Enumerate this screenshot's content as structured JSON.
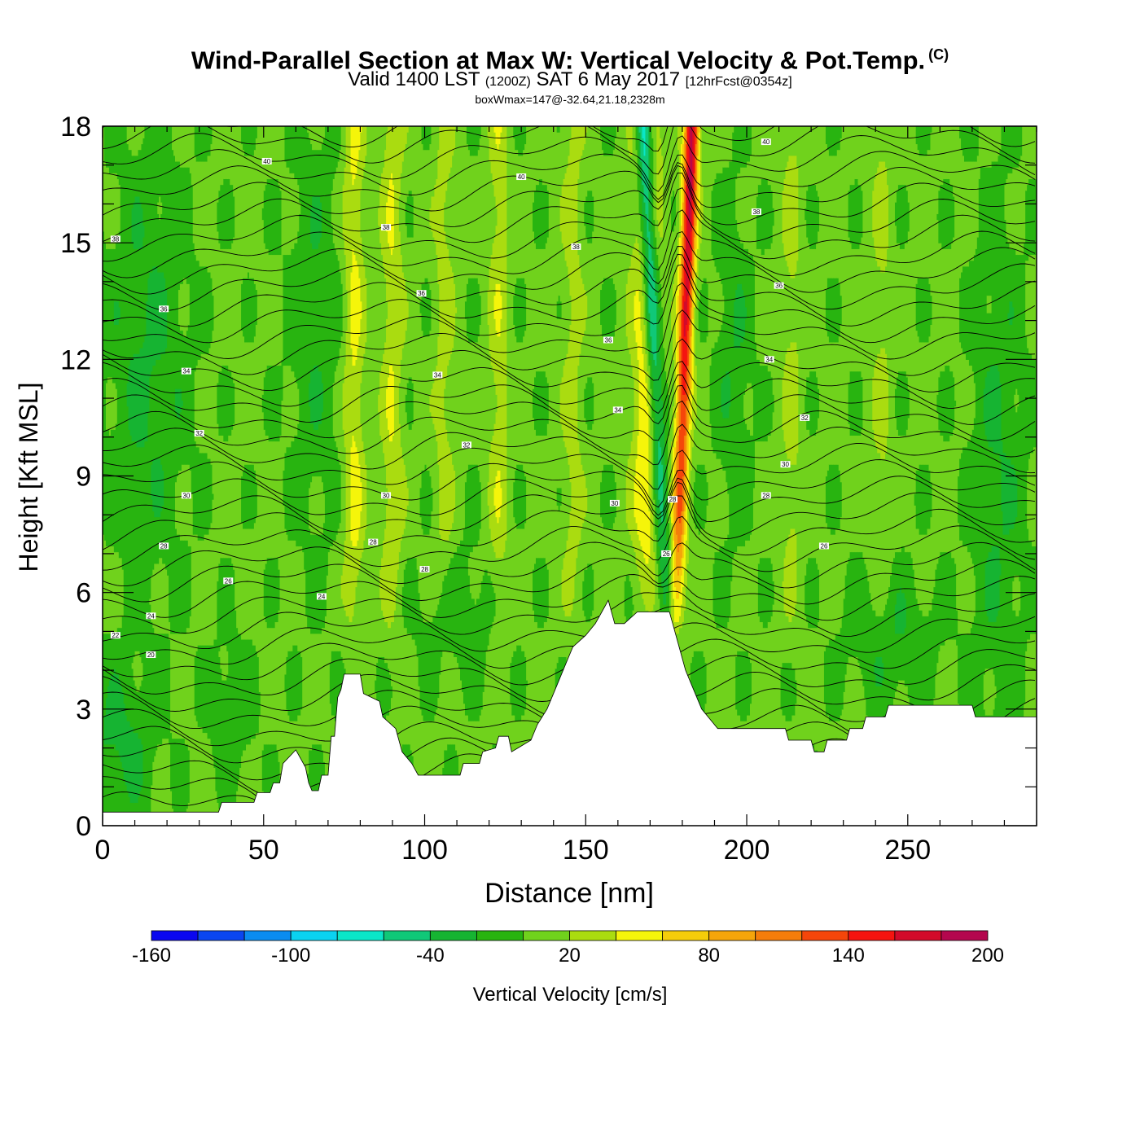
{
  "title": {
    "main": "Wind-Parallel Section at Max W: Vertical Velocity & Pot.Temp.",
    "copyright": "(C)",
    "valid_prefix": "Valid 1400 LST",
    "valid_utc": "(1200Z)",
    "valid_date": "SAT 6 May 2017",
    "forecast": "[12hrFcst@0354z]",
    "box_wmax": "boxWmax=147@-32.64,21.18,2328m"
  },
  "colors": {
    "bins": [
      "#0a06f0",
      "#0a46f0",
      "#0a8cf0",
      "#0ad2f0",
      "#0ae6c8",
      "#10c878",
      "#16b432",
      "#28b410",
      "#70d21c",
      "#aadc10",
      "#f5f50a",
      "#f5cd0a",
      "#f5a50a",
      "#f57d0a",
      "#f5460a",
      "#f51410",
      "#d20a2a",
      "#b4064e"
    ],
    "terrain": "#ffffff"
  },
  "chart_data": {
    "type": "heatmap",
    "xlabel": "Distance [nm]",
    "ylabel": "Height [Kft MSL]",
    "xlim": [
      0,
      290
    ],
    "ylim": [
      0,
      18
    ],
    "xticks": [
      "0",
      "50",
      "100",
      "150",
      "200",
      "250"
    ],
    "xtick_values": [
      0,
      50,
      100,
      150,
      200,
      250
    ],
    "yticks": [
      "0",
      "3",
      "6",
      "9",
      "12",
      "15",
      "18"
    ],
    "ytick_values": [
      0,
      3,
      6,
      9,
      12,
      15,
      18
    ],
    "colorbar": {
      "label": "Vertical Velocity [cm/s]",
      "bounds": [
        -160,
        -140,
        -120,
        -100,
        -80,
        -60,
        -40,
        -20,
        0,
        20,
        40,
        60,
        80,
        100,
        120,
        140,
        160,
        180,
        200
      ],
      "tick_labels": [
        "-160",
        "-100",
        "-40",
        "20",
        "80",
        "140",
        "200"
      ],
      "tick_values": [
        -160,
        -100,
        -40,
        20,
        80,
        140,
        200
      ]
    },
    "terrain_kft": [
      [
        0,
        0.35
      ],
      [
        36,
        0.35
      ],
      [
        37,
        0.6
      ],
      [
        47,
        0.6
      ],
      [
        48,
        0.85
      ],
      [
        52,
        0.85
      ],
      [
        53,
        1.1
      ],
      [
        55,
        1.1
      ],
      [
        56,
        1.6
      ],
      [
        60,
        1.95
      ],
      [
        63,
        1.5
      ],
      [
        64,
        1.1
      ],
      [
        65,
        0.9
      ],
      [
        67,
        0.9
      ],
      [
        68,
        1.3
      ],
      [
        70,
        1.3
      ],
      [
        71,
        2.3
      ],
      [
        72,
        2.3
      ],
      [
        73,
        3.3
      ],
      [
        74,
        3.5
      ],
      [
        75,
        3.9
      ],
      [
        80,
        3.9
      ],
      [
        81,
        3.4
      ],
      [
        86,
        3.2
      ],
      [
        87,
        2.8
      ],
      [
        91,
        2.5
      ],
      [
        93,
        1.9
      ],
      [
        96,
        1.6
      ],
      [
        98,
        1.3
      ],
      [
        111,
        1.3
      ],
      [
        112,
        1.6
      ],
      [
        117,
        1.6
      ],
      [
        118,
        1.9
      ],
      [
        122,
        2.0
      ],
      [
        123,
        2.3
      ],
      [
        126,
        2.3
      ],
      [
        127,
        1.9
      ],
      [
        133,
        2.2
      ],
      [
        135,
        2.6
      ],
      [
        138,
        3.0
      ],
      [
        141,
        3.6
      ],
      [
        144,
        4.2
      ],
      [
        146,
        4.6
      ],
      [
        150,
        4.9
      ],
      [
        153,
        5.2
      ],
      [
        155,
        5.5
      ],
      [
        157,
        5.8
      ],
      [
        159,
        5.2
      ],
      [
        162,
        5.2
      ],
      [
        166,
        5.5
      ],
      [
        176,
        5.5
      ],
      [
        177,
        5.2
      ],
      [
        179,
        4.6
      ],
      [
        181,
        4.0
      ],
      [
        183,
        3.6
      ],
      [
        186,
        3.0
      ],
      [
        188,
        2.8
      ],
      [
        191,
        2.5
      ],
      [
        196,
        2.5
      ],
      [
        212,
        2.5
      ],
      [
        213,
        2.2
      ],
      [
        220,
        2.2
      ],
      [
        221,
        1.9
      ],
      [
        224,
        1.9
      ],
      [
        225,
        2.2
      ],
      [
        231,
        2.2
      ],
      [
        232,
        2.5
      ],
      [
        236,
        2.5
      ],
      [
        237,
        2.8
      ],
      [
        243,
        2.8
      ],
      [
        244,
        3.1
      ],
      [
        255,
        3.1
      ],
      [
        256,
        3.1
      ],
      [
        270,
        3.1
      ],
      [
        271,
        2.8
      ],
      [
        290,
        2.8
      ]
    ],
    "theta_contour_labels": [
      {
        "text": "40",
        "x": 51,
        "y": 17.1
      },
      {
        "text": "40",
        "x": 130,
        "y": 16.7
      },
      {
        "text": "40",
        "x": 206,
        "y": 17.6
      },
      {
        "text": "38",
        "x": 4,
        "y": 15.1
      },
      {
        "text": "38",
        "x": 88,
        "y": 15.4
      },
      {
        "text": "38",
        "x": 147,
        "y": 14.9
      },
      {
        "text": "38",
        "x": 203,
        "y": 15.8
      },
      {
        "text": "36",
        "x": 19,
        "y": 13.3
      },
      {
        "text": "36",
        "x": 99,
        "y": 13.7
      },
      {
        "text": "36",
        "x": 157,
        "y": 12.5
      },
      {
        "text": "36",
        "x": 210,
        "y": 13.9
      },
      {
        "text": "34",
        "x": 26,
        "y": 11.7
      },
      {
        "text": "34",
        "x": 104,
        "y": 11.6
      },
      {
        "text": "34",
        "x": 160,
        "y": 10.7
      },
      {
        "text": "34",
        "x": 207,
        "y": 12.0
      },
      {
        "text": "32",
        "x": 30,
        "y": 10.1
      },
      {
        "text": "32",
        "x": 113,
        "y": 9.8
      },
      {
        "text": "32",
        "x": 218,
        "y": 10.5
      },
      {
        "text": "30",
        "x": 26,
        "y": 8.5
      },
      {
        "text": "30",
        "x": 88,
        "y": 8.5
      },
      {
        "text": "30",
        "x": 159,
        "y": 8.3
      },
      {
        "text": "30",
        "x": 212,
        "y": 9.3
      },
      {
        "text": "28",
        "x": 19,
        "y": 7.2
      },
      {
        "text": "28",
        "x": 84,
        "y": 7.3
      },
      {
        "text": "28",
        "x": 100,
        "y": 6.6
      },
      {
        "text": "28",
        "x": 177,
        "y": 8.4
      },
      {
        "text": "28",
        "x": 206,
        "y": 8.5
      },
      {
        "text": "26",
        "x": 39,
        "y": 6.3
      },
      {
        "text": "26",
        "x": 175,
        "y": 7.0
      },
      {
        "text": "26",
        "x": 224,
        "y": 7.2
      },
      {
        "text": "24",
        "x": 15,
        "y": 5.4
      },
      {
        "text": "24",
        "x": 68,
        "y": 5.9
      },
      {
        "text": "22",
        "x": 4,
        "y": 4.9
      },
      {
        "text": "20",
        "x": 15,
        "y": 4.4
      }
    ]
  }
}
